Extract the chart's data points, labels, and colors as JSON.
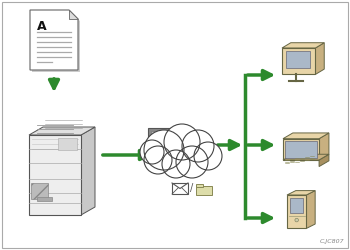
{
  "bg_color": "#ffffff",
  "arrow_color": "#2d8a2d",
  "tan_light": "#e8d5a8",
  "tan_mid": "#c8b080",
  "tan_dark": "#a89060",
  "copier_fill": "#e8e8e8",
  "copier_mid": "#d0d0d0",
  "copier_dark": "#b0b0b0",
  "copier_outline": "#555555",
  "cloud_fill": "#ffffff",
  "cloud_edge": "#444444",
  "server_fill": "#888888",
  "server_screen": "#cccccc",
  "caption": "C.JC807"
}
